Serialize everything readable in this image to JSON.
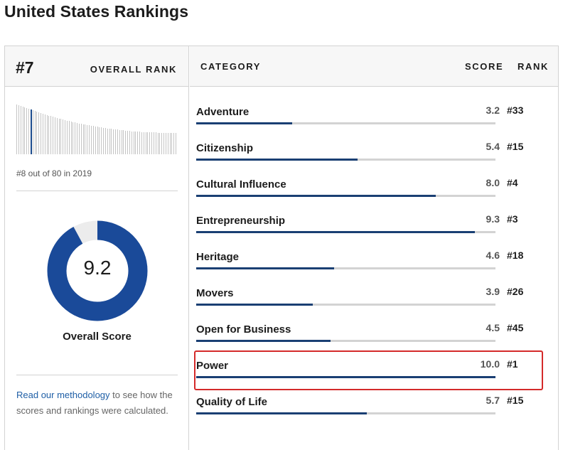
{
  "page_title": "United States Rankings",
  "overall": {
    "rank": "#7",
    "rank_label": "OVERALL RANK",
    "history_note": "#8 out of 80 in 2019",
    "score": "9.2",
    "score_label": "Overall Score",
    "score_fraction": 0.92
  },
  "table_header": {
    "category": "CATEGORY",
    "score": "SCORE",
    "rank": "RANK"
  },
  "categories": [
    {
      "name": "Adventure",
      "score": "3.2",
      "rank": "#33",
      "value": 3.2
    },
    {
      "name": "Citizenship",
      "score": "5.4",
      "rank": "#15",
      "value": 5.4
    },
    {
      "name": "Cultural Influence",
      "score": "8.0",
      "rank": "#4",
      "value": 8.0
    },
    {
      "name": "Entrepreneurship",
      "score": "9.3",
      "rank": "#3",
      "value": 9.3
    },
    {
      "name": "Heritage",
      "score": "4.6",
      "rank": "#18",
      "value": 4.6
    },
    {
      "name": "Movers",
      "score": "3.9",
      "rank": "#26",
      "value": 3.9
    },
    {
      "name": "Open for Business",
      "score": "4.5",
      "rank": "#45",
      "value": 4.5
    },
    {
      "name": "Power",
      "score": "10.0",
      "rank": "#1",
      "value": 10.0,
      "highlighted": true
    },
    {
      "name": "Quality of Life",
      "score": "5.7",
      "rank": "#15",
      "value": 5.7
    }
  ],
  "methodology": {
    "link_text": "Read our methodology",
    "rest_text": " to see how the scores and rankings were calculated."
  },
  "colors": {
    "bar_fill": "#1a3f73",
    "donut_fill": "#1a4a99",
    "donut_track": "#ececec",
    "highlight_border": "#d42a2a"
  }
}
